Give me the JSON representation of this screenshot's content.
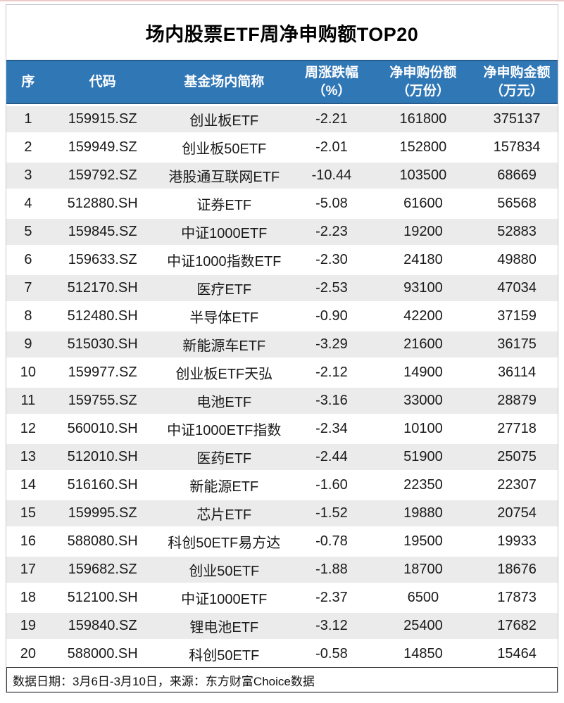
{
  "chart_data": {
    "type": "table",
    "title": "场内股票ETF周净申购额TOP20",
    "columns": [
      {
        "line1": "序",
        "line2": ""
      },
      {
        "line1": "代码",
        "line2": ""
      },
      {
        "line1": "基金场内简称",
        "line2": ""
      },
      {
        "line1": "周涨跌幅",
        "line2": "（%）"
      },
      {
        "line1": "净申购份额",
        "line2": "（万份）"
      },
      {
        "line1": "净申购金额",
        "line2": "（万元）"
      }
    ],
    "rows": [
      [
        "1",
        "159915.SZ",
        "创业板ETF",
        "-2.21",
        "161800",
        "375137"
      ],
      [
        "2",
        "159949.SZ",
        "创业板50ETF",
        "-2.01",
        "152800",
        "157834"
      ],
      [
        "3",
        "159792.SZ",
        "港股通互联网ETF",
        "-10.44",
        "103500",
        "68669"
      ],
      [
        "4",
        "512880.SH",
        "证券ETF",
        "-5.08",
        "61600",
        "56568"
      ],
      [
        "5",
        "159845.SZ",
        "中证1000ETF",
        "-2.23",
        "19200",
        "52883"
      ],
      [
        "6",
        "159633.SZ",
        "中证1000指数ETF",
        "-2.30",
        "24180",
        "49880"
      ],
      [
        "7",
        "512170.SH",
        "医疗ETF",
        "-2.53",
        "93100",
        "47034"
      ],
      [
        "8",
        "512480.SH",
        "半导体ETF",
        "-0.90",
        "42200",
        "37159"
      ],
      [
        "9",
        "515030.SH",
        "新能源车ETF",
        "-3.29",
        "21600",
        "36175"
      ],
      [
        "10",
        "159977.SZ",
        "创业板ETF天弘",
        "-2.12",
        "14900",
        "36114"
      ],
      [
        "11",
        "159755.SZ",
        "电池ETF",
        "-3.16",
        "33000",
        "28879"
      ],
      [
        "12",
        "560010.SH",
        "中证1000ETF指数",
        "-2.34",
        "10100",
        "27718"
      ],
      [
        "13",
        "512010.SH",
        "医药ETF",
        "-2.44",
        "51900",
        "25075"
      ],
      [
        "14",
        "516160.SH",
        "新能源ETF",
        "-1.60",
        "22350",
        "22307"
      ],
      [
        "15",
        "159995.SZ",
        "芯片ETF",
        "-1.52",
        "19880",
        "20754"
      ],
      [
        "16",
        "588080.SH",
        "科创50ETF易方达",
        "-0.78",
        "19500",
        "19933"
      ],
      [
        "17",
        "159682.SZ",
        "创业50ETF",
        "-1.88",
        "18700",
        "18676"
      ],
      [
        "18",
        "512100.SH",
        "中证1000ETF",
        "-2.37",
        "6500",
        "17873"
      ],
      [
        "19",
        "159840.SZ",
        "锂电池ETF",
        "-3.12",
        "25400",
        "17682"
      ],
      [
        "20",
        "588000.SH",
        "科创50ETF",
        "-0.58",
        "14850",
        "15464"
      ]
    ],
    "footer_note": "数据日期：3月6日-3月10日，来源：东方财富Choice数据",
    "layout": {
      "striped_rows": "odd",
      "cell_align": "center"
    }
  },
  "colors": {
    "header_bg": "#3077B6",
    "header_text": "#FFFFFF",
    "stripe": "#EBEBEB",
    "outer_border": "#C6C9D2",
    "footer_border": "#3C3C3C",
    "text": "#1A1A1A"
  }
}
